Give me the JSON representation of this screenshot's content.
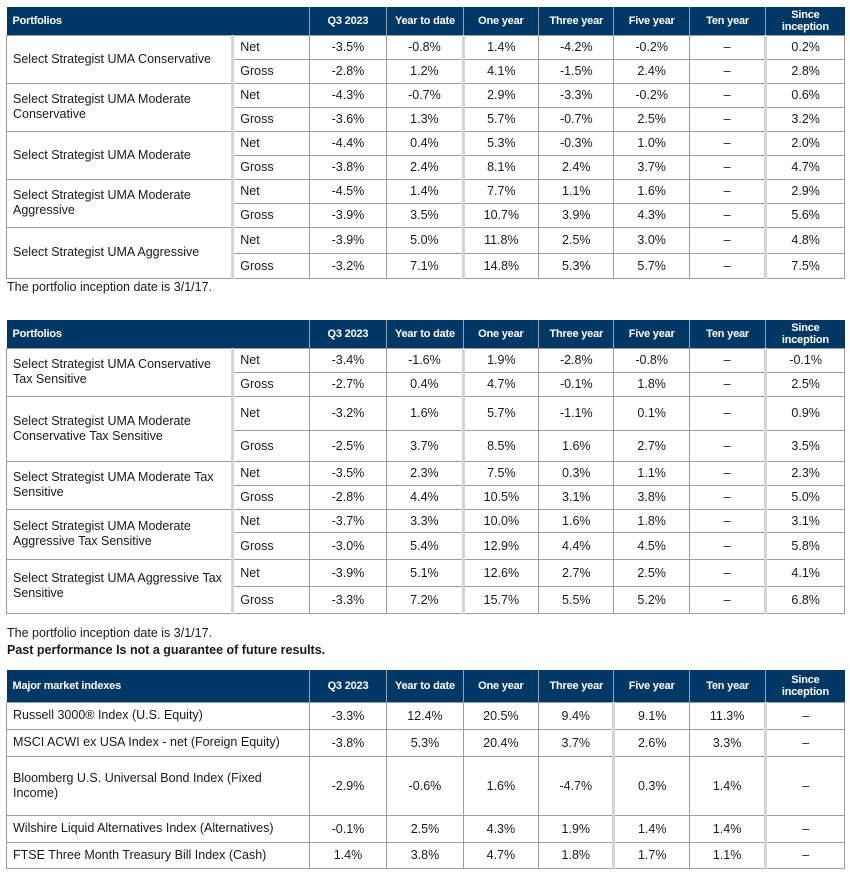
{
  "columns": [
    "Q3 2023",
    "Year to date",
    "One year",
    "Three year",
    "Five year",
    "Ten year",
    "Since inception"
  ],
  "table1": {
    "header": "Portfolios",
    "rows": [
      {
        "name": "Select Strategist UMA Conservative",
        "net": [
          "-3.5%",
          "-0.8%",
          "1.4%",
          "-4.2%",
          "-0.2%",
          "–",
          "0.2%"
        ],
        "gross": [
          "-2.8%",
          "1.2%",
          "4.1%",
          "-1.5%",
          "2.4%",
          "–",
          "2.8%"
        ]
      },
      {
        "name": "Select Strategist UMA Moderate Conservative",
        "net": [
          "-4.3%",
          "-0.7%",
          "2.9%",
          "-3.3%",
          "-0.2%",
          "–",
          "0.6%"
        ],
        "gross": [
          "-3.6%",
          "1.3%",
          "5.7%",
          "-0.7%",
          "2.5%",
          "–",
          "3.2%"
        ]
      },
      {
        "name": "Select Strategist UMA Moderate",
        "net": [
          "-4.4%",
          "0.4%",
          "5.3%",
          "-0.3%",
          "1.0%",
          "–",
          "2.0%"
        ],
        "gross": [
          "-3.8%",
          "2.4%",
          "8.1%",
          "2.4%",
          "3.7%",
          "–",
          "4.7%"
        ]
      },
      {
        "name": "Select Strategist UMA Moderate Aggressive",
        "net": [
          "-4.5%",
          "1.4%",
          "7.7%",
          "1.1%",
          "1.6%",
          "–",
          "2.9%"
        ],
        "gross": [
          "-3.9%",
          "3.5%",
          "10.7%",
          "3.9%",
          "4.3%",
          "–",
          "5.6%"
        ]
      },
      {
        "name": "Select Strategist UMA Aggressive",
        "net": [
          "-3.9%",
          "5.0%",
          "11.8%",
          "2.5%",
          "3.0%",
          "–",
          "4.8%"
        ],
        "gross": [
          "-3.2%",
          "7.1%",
          "14.8%",
          "5.3%",
          "5.7%",
          "–",
          "7.5%"
        ]
      }
    ],
    "note": "The portfolio inception date is 3/1/17."
  },
  "table2": {
    "header": "Portfolios",
    "rows": [
      {
        "name": "Select Strategist UMA Conservative Tax Sensitive",
        "net": [
          "-3.4%",
          "-1.6%",
          "1.9%",
          "-2.8%",
          "-0.8%",
          "–",
          "-0.1%"
        ],
        "gross": [
          "-2.7%",
          "0.4%",
          "4.7%",
          "-0.1%",
          "1.8%",
          "–",
          "2.5%"
        ]
      },
      {
        "name": "Select Strategist UMA Moderate Conservative Tax Sensitive",
        "net": [
          "-3.2%",
          "1.6%",
          "5.7%",
          "-1.1%",
          "0.1%",
          "–",
          "0.9%"
        ],
        "gross": [
          "-2.5%",
          "3.7%",
          "8.5%",
          "1.6%",
          "2.7%",
          "–",
          "3.5%"
        ]
      },
      {
        "name": "Select Strategist UMA Moderate Tax Sensitive",
        "net": [
          "-3.5%",
          "2.3%",
          "7.5%",
          "0.3%",
          "1.1%",
          "–",
          "2.3%"
        ],
        "gross": [
          "-2.8%",
          "4.4%",
          "10.5%",
          "3.1%",
          "3.8%",
          "–",
          "5.0%"
        ]
      },
      {
        "name": "Select Strategist UMA Moderate Aggressive Tax Sensitive",
        "net": [
          "-3.7%",
          "3.3%",
          "10.0%",
          "1.6%",
          "1.8%",
          "–",
          "3.1%"
        ],
        "gross": [
          "-3.0%",
          "5.4%",
          "12.9%",
          "4.4%",
          "4.5%",
          "–",
          "5.8%"
        ]
      },
      {
        "name": "Select Strategist UMA Aggressive Tax Sensitive",
        "net": [
          "-3.9%",
          "5.1%",
          "12.6%",
          "2.7%",
          "2.5%",
          "–",
          "4.1%"
        ],
        "gross": [
          "-3.3%",
          "7.2%",
          "15.7%",
          "5.5%",
          "5.2%",
          "–",
          "6.8%"
        ]
      }
    ],
    "note": "The portfolio inception date is 3/1/17.",
    "disclaimer": "Past performance Is not a guarantee of future results."
  },
  "table3": {
    "header": "Major market indexes",
    "rows": [
      {
        "name": "Russell 3000® Index (U.S. Equity)",
        "values": [
          "-3.3%",
          "12.4%",
          "20.5%",
          "9.4%",
          "9.1%",
          "11.3%",
          "–"
        ]
      },
      {
        "name": "MSCI ACWI ex USA Index - net (Foreign Equity)",
        "values": [
          "-3.8%",
          "5.3%",
          "20.4%",
          "3.7%",
          "2.6%",
          "3.3%",
          "–"
        ]
      },
      {
        "name": "Bloomberg U.S. Universal Bond Index (Fixed Income)",
        "values": [
          "-2.9%",
          "-0.6%",
          "1.6%",
          "-4.7%",
          "0.3%",
          "1.4%",
          "–"
        ]
      },
      {
        "name": "Wilshire Liquid Alternatives Index (Alternatives)",
        "values": [
          "-0.1%",
          "2.5%",
          "4.3%",
          "1.9%",
          "1.4%",
          "1.4%",
          "–"
        ]
      },
      {
        "name": "FTSE Three Month Treasury Bill Index (Cash)",
        "values": [
          "1.4%",
          "3.8%",
          "4.7%",
          "1.8%",
          "1.7%",
          "1.1%",
          "–"
        ]
      }
    ]
  },
  "labels": {
    "net": "Net",
    "gross": "Gross"
  }
}
